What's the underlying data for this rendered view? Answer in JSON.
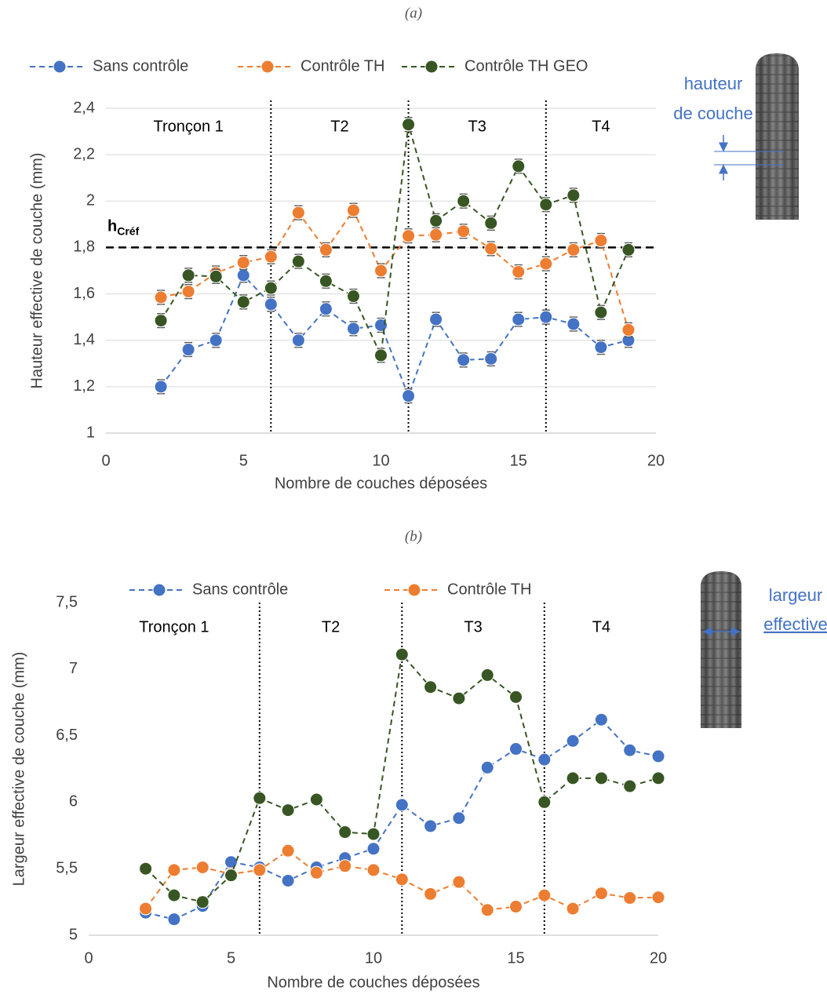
{
  "chart_data": [
    {
      "type": "line",
      "title": "(a)",
      "x_label": "Nombre de couches déposées",
      "y_label": "Hauteur effective de couche (mm)",
      "x": [
        2,
        3,
        4,
        5,
        6,
        7,
        8,
        9,
        10,
        11,
        12,
        13,
        14,
        15,
        16,
        17,
        18,
        19
      ],
      "series": [
        {
          "name": "Sans contrôle",
          "color": "#4472c4",
          "error": 0.03,
          "values": [
            1.2,
            1.36,
            1.4,
            1.68,
            1.555,
            1.4,
            1.535,
            1.45,
            1.465,
            1.16,
            1.49,
            1.315,
            1.32,
            1.49,
            1.5,
            1.47,
            1.37,
            1.4
          ]
        },
        {
          "name": "Contrôle TH",
          "color": "#ed7d31",
          "error": 0.03,
          "values": [
            1.585,
            1.61,
            1.69,
            1.735,
            1.76,
            1.95,
            1.79,
            1.96,
            1.7,
            1.85,
            1.855,
            1.87,
            1.795,
            1.695,
            1.73,
            1.79,
            1.83,
            1.445
          ]
        },
        {
          "name": "Contrôle TH GEO",
          "color": "#375623",
          "error": 0.03,
          "values": [
            1.485,
            1.68,
            1.675,
            1.565,
            1.625,
            1.74,
            1.655,
            1.59,
            1.335,
            2.33,
            1.915,
            2.0,
            1.905,
            2.15,
            1.985,
            2.025,
            1.52,
            1.79
          ]
        }
      ],
      "xlim": [
        0,
        20
      ],
      "xticks": [
        0,
        5,
        10,
        15,
        20
      ],
      "ylim": [
        1,
        2.4
      ],
      "yticks": [
        1,
        {
          "value": 1.2,
          "label": "1,2"
        },
        {
          "value": 1.4,
          "label": "1,4"
        },
        {
          "value": 1.6,
          "label": "1,6"
        },
        {
          "value": 1.8,
          "label": "1,8"
        },
        2,
        {
          "value": 2.2,
          "label": "2,2"
        },
        {
          "value": 2.4,
          "label": "2,4"
        }
      ],
      "grid": true,
      "dividers": [
        6,
        11,
        16
      ],
      "sections": [
        "Tronçon 1",
        "T2",
        "T3",
        "T4"
      ],
      "reference": {
        "value": 1.8,
        "label": "h",
        "label_sub": "Créf"
      },
      "side_label": [
        "hauteur",
        "de couche"
      ]
    },
    {
      "type": "line",
      "title": "(b)",
      "x_label": "Nombre de couches déposées",
      "y_label": "Largeur effective de couche (mm)",
      "x": [
        2,
        3,
        4,
        5,
        6,
        7,
        8,
        9,
        10,
        11,
        12,
        13,
        14,
        15,
        16,
        17,
        18,
        19,
        20
      ],
      "series": [
        {
          "name": "Sans contrôle",
          "color": "#4472c4",
          "error": 0.03,
          "values": [
            5.17,
            5.12,
            5.22,
            5.55,
            5.51,
            5.41,
            5.51,
            5.58,
            5.65,
            5.98,
            5.82,
            5.88,
            6.26,
            6.4,
            6.32,
            6.46,
            6.62,
            6.39,
            6.345
          ]
        },
        {
          "name": "Contrôle TH",
          "color": "#ed7d31",
          "error": 0.03,
          "values": [
            5.2,
            5.49,
            5.51,
            5.46,
            5.49,
            5.635,
            5.47,
            5.52,
            5.49,
            5.42,
            5.31,
            5.4,
            5.19,
            5.215,
            5.3,
            5.2,
            5.315,
            5.28,
            5.285
          ]
        },
        {
          "color": "#375623",
          "error": 0.03,
          "values": [
            5.5,
            5.3,
            5.25,
            5.45,
            6.03,
            5.94,
            6.02,
            5.775,
            5.76,
            7.11,
            6.865,
            6.78,
            6.955,
            6.79,
            6.0,
            6.18,
            6.18,
            6.12,
            6.18
          ]
        }
      ],
      "xlim": [
        0,
        20
      ],
      "xticks": [
        0,
        5,
        10,
        15,
        20
      ],
      "ylim": [
        5,
        7.5
      ],
      "yticks": [
        5,
        {
          "value": 5.5,
          "label": "5,5"
        },
        6,
        {
          "value": 6.5,
          "label": "6,5"
        },
        7,
        {
          "value": 7.5,
          "label": "7,5"
        }
      ],
      "grid": false,
      "dividers": [
        6,
        11,
        16
      ],
      "sections": [
        "Tronçon 1",
        "T2",
        "T3",
        "T4"
      ],
      "side_label": [
        "largeur",
        "effective"
      ]
    }
  ]
}
